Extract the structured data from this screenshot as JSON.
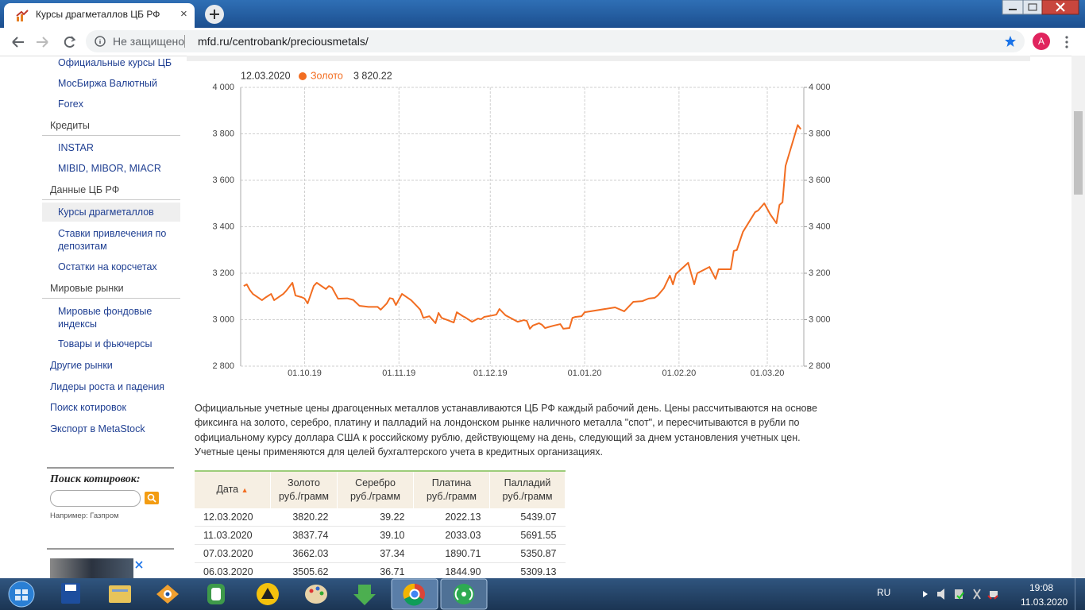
{
  "browser": {
    "tab_title": "Курсы драгметаллов ЦБ РФ",
    "security": "Не защищено",
    "url": "mfd.ru/centrobank/preciousmetals/",
    "avatar": "А"
  },
  "sidebar": {
    "top_items": [
      "Официальные курсы ЦБ",
      "МосБиржа Валютный",
      "Forex"
    ],
    "groups": [
      {
        "title": "Кредиты",
        "items": [
          "INSTAR",
          "MIBID, MIBOR, MIACR"
        ]
      },
      {
        "title": "Данные ЦБ РФ",
        "items": [
          "Курсы драгметаллов",
          "Ставки привлечения по депозитам",
          "Остатки на корсчетах"
        ]
      },
      {
        "title": "Мировые рынки",
        "items": [
          "Мировые фондовые индексы",
          "Товары и фьючерсы"
        ]
      }
    ],
    "links": [
      "Другие рынки",
      "Лидеры роста и падения",
      "Поиск котировок",
      "Экспорт в MetaStock"
    ],
    "search": {
      "title": "Поиск котировок:",
      "example": "Например: Газпром"
    }
  },
  "chart_data": {
    "type": "line",
    "header_date": "12.03.2020",
    "header_value": "3 820.22",
    "x": [
      "11.09.19",
      "12.09.19",
      "13.09.19",
      "14.09.19",
      "17.09.19",
      "18.09.19",
      "20.09.19",
      "21.09.19",
      "24.09.19",
      "25.09.19",
      "27.09.19",
      "28.09.19",
      "30.09.19",
      "01.10.19",
      "02.10.19",
      "04.10.19",
      "05.10.19",
      "08.10.19",
      "09.10.19",
      "10.10.19",
      "12.10.19",
      "15.10.19",
      "17.10.19",
      "19.10.19",
      "22.10.19",
      "25.10.19",
      "26.10.19",
      "28.10.19",
      "29.10.19",
      "30.10.19",
      "31.10.19",
      "02.11.19",
      "05.11.19",
      "07.11.19",
      "08.11.19",
      "09.11.19",
      "11.11.19",
      "13.11.19",
      "14.11.19",
      "15.11.19",
      "17.11.19",
      "19.11.19",
      "20.11.19",
      "22.11.19",
      "23.11.19",
      "25.11.19",
      "27.11.19",
      "28.11.19",
      "29.11.19",
      "02.12.19",
      "03.12.19",
      "04.12.19",
      "06.12.19",
      "08.12.19",
      "10.12.19",
      "12.12.19",
      "13.12.19",
      "14.12.19",
      "15.12.19",
      "17.12.19",
      "18.12.19",
      "19.12.19",
      "20.12.19",
      "22.12.19",
      "24.12.19",
      "25.12.19",
      "27.12.19",
      "28.12.19",
      "29.12.19",
      "31.12.19",
      "01.01.20",
      "11.01.20",
      "14.01.20",
      "17.01.20",
      "20.01.20",
      "22.01.20",
      "24.01.20",
      "25.01.20",
      "27.01.20",
      "29.01.20",
      "30.01.20",
      "31.01.20",
      "04.02.20",
      "06.02.20",
      "07.02.20",
      "11.02.20",
      "13.02.20",
      "14.02.20",
      "18.02.20",
      "19.02.20",
      "20.02.20",
      "22.02.20",
      "26.02.20",
      "27.02.20",
      "29.02.20",
      "02.03.20",
      "04.03.20",
      "05.03.20",
      "06.03.20",
      "07.03.20",
      "11.03.20",
      "12.03.20"
    ],
    "series": [
      {
        "name": "Золото",
        "color": "#f26d21",
        "values": [
          3145,
          3152,
          3128,
          3111,
          3084,
          3094,
          3111,
          3084,
          3111,
          3125,
          3159,
          3104,
          3097,
          3091,
          3070,
          3145,
          3159,
          3132,
          3145,
          3138,
          3090,
          3092,
          3085,
          3060,
          3055,
          3055,
          3043,
          3070,
          3093,
          3090,
          3063,
          3111,
          3084,
          3057,
          3043,
          3008,
          3015,
          2985,
          3029,
          3008,
          2998,
          2988,
          3032,
          3015,
          3008,
          2991,
          3005,
          3002,
          3012,
          3019,
          3022,
          3046,
          3019,
          3005,
          2991,
          2998,
          2995,
          2961,
          2975,
          2985,
          2978,
          2964,
          2968,
          2975,
          2981,
          2961,
          2964,
          3008,
          3012,
          3015,
          3032,
          3053,
          3036,
          3077,
          3080,
          3091,
          3094,
          3104,
          3135,
          3190,
          3152,
          3197,
          3245,
          3152,
          3200,
          3227,
          3176,
          3217,
          3217,
          3296,
          3300,
          3378,
          3463,
          3470,
          3501,
          3453,
          3415,
          3494,
          3505.62,
          3662.03,
          3837.74,
          3820.22
        ]
      }
    ],
    "xlim": [
      "10.09.19",
      "13.03.20"
    ],
    "xticks": [
      "01.10.19",
      "01.11.19",
      "01.12.19",
      "01.01.20",
      "01.02.20",
      "01.03.20"
    ],
    "ylim": [
      2800,
      4000
    ],
    "yticks": [
      {
        "value": 2800,
        "label": "2 800"
      },
      {
        "value": 3000,
        "label": "3 000"
      },
      {
        "value": 3200,
        "label": "3 200"
      },
      {
        "value": 3400,
        "label": "3 400"
      },
      {
        "value": 3600,
        "label": "3 600"
      },
      {
        "value": 3800,
        "label": "3 800"
      },
      {
        "value": 4000,
        "label": "4 000"
      }
    ],
    "y2lim": [
      2800,
      4000
    ],
    "y2ticks": [
      {
        "value": 2800,
        "label": "2 800"
      },
      {
        "value": 3000,
        "label": "3 000"
      },
      {
        "value": 3200,
        "label": "3 200"
      },
      {
        "value": 3400,
        "label": "3 400"
      },
      {
        "value": 3600,
        "label": "3 600"
      },
      {
        "value": 3800,
        "label": "3 800"
      },
      {
        "value": 4000,
        "label": "4 000"
      }
    ],
    "grid": true
  },
  "description": "Официальные учетные цены драгоценных металлов устанавливаются ЦБ РФ каждый рабочий день. Цены рассчитываются на основе фиксинга на золото, серебро, платину и палладий на лондонском рынке наличного металла \"спот\", и пересчитываются в рубли по официальному курсу доллара США к российскому рублю, действующему на день, следующий за днем установления учетных цен. Учетные цены применяются для целей бухгалтерского учета в кредитных организациях.",
  "table": {
    "headers": [
      [
        "Дата"
      ],
      [
        "Золото",
        "руб./грамм"
      ],
      [
        "Серебро",
        "руб./грамм"
      ],
      [
        "Платина",
        "руб./грамм"
      ],
      [
        "Палладий",
        "руб./грамм"
      ]
    ],
    "rows": [
      [
        "12.03.2020",
        "3820.22",
        "39.22",
        "2022.13",
        "5439.07"
      ],
      [
        "11.03.2020",
        "3837.74",
        "39.10",
        "2033.03",
        "5691.55"
      ],
      [
        "07.03.2020",
        "3662.03",
        "37.34",
        "1890.71",
        "5350.87"
      ],
      [
        "06.03.2020",
        "3505.62",
        "36.71",
        "1844.90",
        "5309.13"
      ]
    ]
  },
  "taskbar": {
    "lang": "RU",
    "time": "19:08",
    "date": "11.03.2020"
  }
}
